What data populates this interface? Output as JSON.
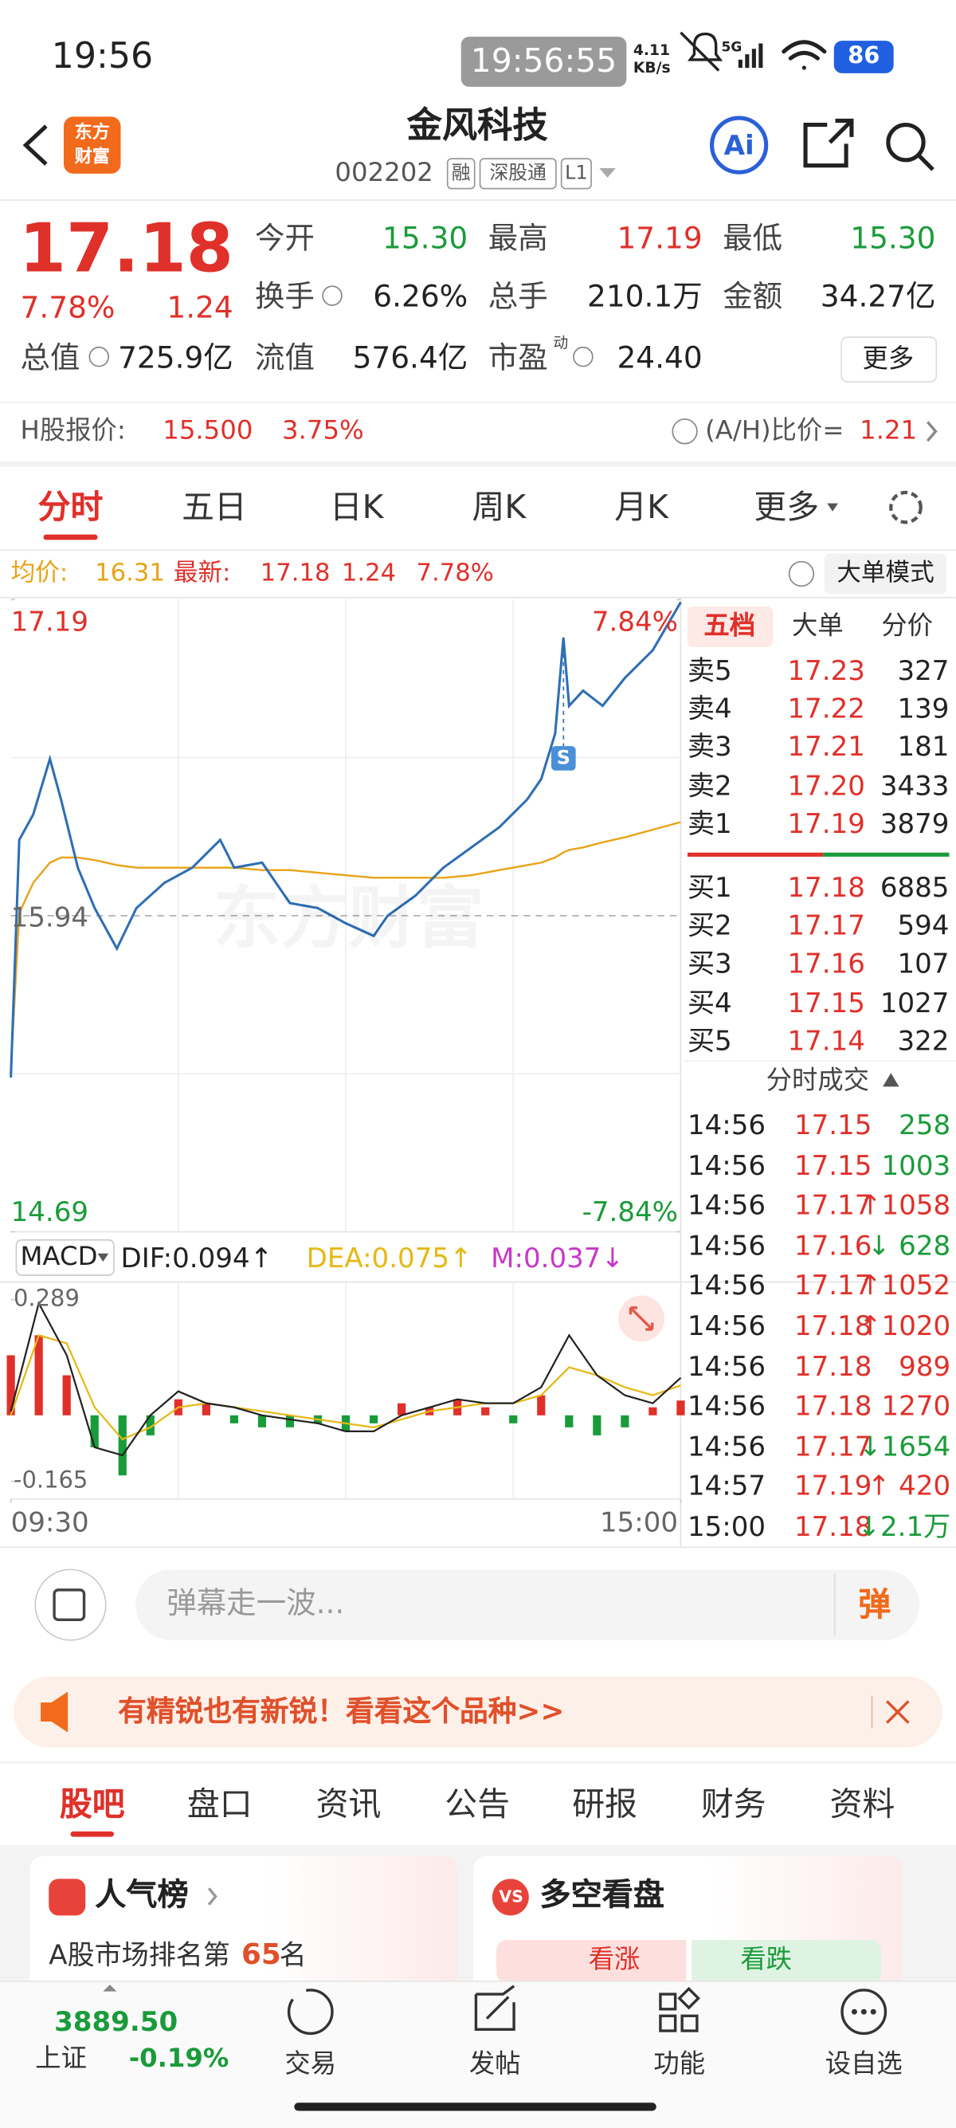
{
  "status_bar": {
    "time": "19:56",
    "clock": "19:56:55",
    "speed_value": "4.11",
    "speed_unit": "KB/s",
    "network": "5G",
    "battery": "86"
  },
  "header": {
    "logo_top": "东方",
    "logo_bottom": "财富",
    "title": "金风科技",
    "code": "002202",
    "tags": [
      "融",
      "深股通",
      "L1"
    ],
    "ai": "Ai"
  },
  "quote": {
    "price": "17.18",
    "change_pct": "7.78%",
    "change": "1.24",
    "fields": [
      {
        "label": "今开",
        "value": "15.30",
        "color": "#1a9b3a"
      },
      {
        "label": "最高",
        "value": "17.19",
        "color": "#e0302a"
      },
      {
        "label": "最低",
        "value": "15.30",
        "color": "#1a9b3a"
      },
      {
        "label": "换手",
        "value": "6.26%",
        "color": "#222222"
      },
      {
        "label": "总手",
        "value": "210.1万",
        "color": "#222222"
      },
      {
        "label": "金额",
        "value": "34.27亿",
        "color": "#222222"
      },
      {
        "label": "总值",
        "value": "725.9亿",
        "color": "#222222"
      },
      {
        "label": "流值",
        "value": "576.4亿",
        "color": "#222222"
      },
      {
        "label": "市盈",
        "label_sup": "动",
        "value": "24.40",
        "color": "#222222"
      }
    ],
    "more": "更多"
  },
  "h_share": {
    "label": "H股报价:",
    "price": "15.500",
    "pct": "3.75%",
    "ah_label": "(A/H)比价=",
    "ah_value": "1.21"
  },
  "tabs": [
    "分时",
    "五日",
    "日K",
    "周K",
    "月K",
    "更多"
  ],
  "info": {
    "avg": "16.31",
    "latest": "17.18",
    "change": "1.24",
    "pct": "7.78%",
    "mode": "大单模式"
  },
  "chart_data": [
    {
      "type": "line",
      "watermark": "东方财富",
      "x": [
        "09:30",
        "09:33",
        "09:38",
        "09:44",
        "09:48",
        "09:54",
        "10:00",
        "10:08",
        "10:15",
        "10:25",
        "10:35",
        "10:45",
        "10:50",
        "11:00",
        "11:10",
        "11:20",
        "11:30",
        "13:10",
        "13:15",
        "13:25",
        "13:35",
        "13:45",
        "13:55",
        "14:05",
        "14:10",
        "14:15",
        "14:18",
        "14:20",
        "14:25",
        "14:32",
        "14:40",
        "14:50",
        "15:00"
      ],
      "series": [
        {
          "name": "最新:",
          "color": "#2f6fb3",
          "values": [
            15.3,
            16.24,
            16.34,
            16.56,
            16.4,
            16.13,
            15.97,
            15.81,
            15.97,
            16.07,
            16.13,
            16.24,
            16.13,
            16.15,
            15.99,
            15.97,
            15.91,
            15.86,
            15.94,
            16.02,
            16.13,
            16.21,
            16.29,
            16.4,
            16.48,
            16.66,
            17.04,
            16.77,
            16.83,
            16.77,
            16.88,
            16.99,
            17.18
          ]
        },
        {
          "name": "均价:",
          "color": "#e8a317",
          "values": [
            15.33,
            15.95,
            16.07,
            16.15,
            16.17,
            16.17,
            16.16,
            16.14,
            16.13,
            16.13,
            16.13,
            16.13,
            16.13,
            16.12,
            16.12,
            16.11,
            16.1,
            16.09,
            16.09,
            16.09,
            16.09,
            16.1,
            16.12,
            16.14,
            16.15,
            16.17,
            16.19,
            16.2,
            16.21,
            16.23,
            16.25,
            16.28,
            16.31
          ]
        }
      ],
      "ylim": [
        14.69,
        17.19
      ],
      "yticks": [
        17.19,
        15.94,
        14.69
      ],
      "y2lim": [
        -7.84,
        7.84
      ],
      "y2ticks": [
        {
          "value": 7.84,
          "label": "7.84%"
        },
        {
          "value": -7.84,
          "label": "-7.84%"
        }
      ],
      "annotations": [
        {
          "x": "14:18",
          "text": "S"
        }
      ],
      "grid": true
    },
    {
      "type": "macd",
      "title": "MACD",
      "x": [
        "09:30",
        "09:40",
        "09:50",
        "10:00",
        "10:10",
        "10:20",
        "10:30",
        "10:40",
        "10:50",
        "11:00",
        "11:10",
        "11:20",
        "11:30",
        "13:10",
        "13:20",
        "13:30",
        "13:40",
        "13:50",
        "14:00",
        "14:10",
        "14:20",
        "14:30",
        "14:40",
        "14:50",
        "15:00"
      ],
      "series": [
        {
          "name": "DIF:0.094↑",
          "color": "#222222",
          "values": [
            0.01,
            0.28,
            0.15,
            -0.08,
            -0.1,
            0.0,
            0.06,
            0.03,
            0.02,
            0.0,
            -0.01,
            -0.02,
            -0.04,
            -0.04,
            0.0,
            0.02,
            0.04,
            0.03,
            0.03,
            0.07,
            0.2,
            0.1,
            0.05,
            0.03,
            0.094
          ]
        },
        {
          "name": "DEA:0.075↑",
          "color": "#e6b814",
          "values": [
            0.0,
            0.2,
            0.18,
            0.02,
            -0.06,
            -0.03,
            0.02,
            0.03,
            0.02,
            0.01,
            0.0,
            -0.01,
            -0.02,
            -0.03,
            -0.01,
            0.01,
            0.02,
            0.03,
            0.03,
            0.05,
            0.12,
            0.1,
            0.07,
            0.05,
            0.075
          ]
        },
        {
          "name": "M:0.037↓",
          "color": "#c837c8",
          "up_color": "#e0302a",
          "down_color": "#1a9b3a",
          "values": [
            0.15,
            0.2,
            0.1,
            -0.08,
            -0.15,
            -0.05,
            0.04,
            0.03,
            -0.02,
            -0.03,
            -0.03,
            -0.02,
            -0.04,
            -0.02,
            0.03,
            0.02,
            0.04,
            0.02,
            -0.02,
            0.05,
            -0.03,
            -0.05,
            -0.03,
            0.02,
            0.037
          ]
        }
      ],
      "ylim": [
        -0.165,
        0.289
      ],
      "yticks": [
        0.289,
        -0.165
      ],
      "xticks": [
        "09:30",
        "15:00"
      ],
      "grid": true
    }
  ],
  "order_book": {
    "tabs": [
      "五档",
      "大单",
      "分价"
    ],
    "asks": [
      {
        "label": "卖5",
        "price": "17.23",
        "volume": "327"
      },
      {
        "label": "卖4",
        "price": "17.22",
        "volume": "139"
      },
      {
        "label": "卖3",
        "price": "17.21",
        "volume": "181"
      },
      {
        "label": "卖2",
        "price": "17.20",
        "volume": "3433"
      },
      {
        "label": "卖1",
        "price": "17.19",
        "volume": "3879"
      }
    ],
    "bids": [
      {
        "label": "买1",
        "price": "17.18",
        "volume": "6885"
      },
      {
        "label": "买2",
        "price": "17.17",
        "volume": "594"
      },
      {
        "label": "买3",
        "price": "17.16",
        "volume": "107"
      },
      {
        "label": "买4",
        "price": "17.15",
        "volume": "1027"
      },
      {
        "label": "买5",
        "price": "17.14",
        "volume": "322"
      }
    ],
    "trades_title": "分时成交",
    "trades": [
      {
        "time": "14:56",
        "price": "17.15",
        "volume": "258",
        "color": "#1a9b3a"
      },
      {
        "time": "14:56",
        "price": "17.15",
        "volume": "1003",
        "color": "#1a9b3a"
      },
      {
        "time": "14:56",
        "price": "17.17",
        "volume": "↑1058",
        "color": "#e0302a"
      },
      {
        "time": "14:56",
        "price": "17.16",
        "volume": "↓ 628",
        "color": "#1a9b3a"
      },
      {
        "time": "14:56",
        "price": "17.17",
        "volume": "↑1052",
        "color": "#e0302a"
      },
      {
        "time": "14:56",
        "price": "17.18",
        "volume": "↑1020",
        "color": "#e0302a"
      },
      {
        "time": "14:56",
        "price": "17.18",
        "volume": "989",
        "color": "#e0302a"
      },
      {
        "time": "14:56",
        "price": "17.18",
        "volume": "1270",
        "color": "#e0302a"
      },
      {
        "time": "14:56",
        "price": "17.17",
        "volume": "↓1654",
        "color": "#1a9b3a"
      },
      {
        "time": "14:57",
        "price": "17.19",
        "volume": "↑ 420",
        "color": "#e0302a"
      },
      {
        "time": "15:00",
        "price": "17.18",
        "volume": "↓2.1万",
        "color": "#1a9b3a"
      }
    ]
  },
  "barrage": {
    "placeholder": "弹幕走一波...",
    "button": "弹"
  },
  "banner": {
    "text": "有精锐也有新锐！看看这个品种>>"
  },
  "section_tabs": [
    "股吧",
    "盘口",
    "资讯",
    "公告",
    "研报",
    "财务",
    "资料"
  ],
  "cards": {
    "popularity": {
      "title": "人气榜",
      "text": "A股市场排名第",
      "rank": "65",
      "suffix": "名"
    },
    "vs": {
      "icon": "VS",
      "title": "多空看盘",
      "up": "看涨",
      "down": "看跌"
    }
  },
  "bottom_nav": {
    "index_value": "3889.50",
    "index_name": "上证",
    "index_pct": "-0.19%",
    "items": [
      "交易",
      "发帖",
      "功能",
      "设自选"
    ]
  }
}
